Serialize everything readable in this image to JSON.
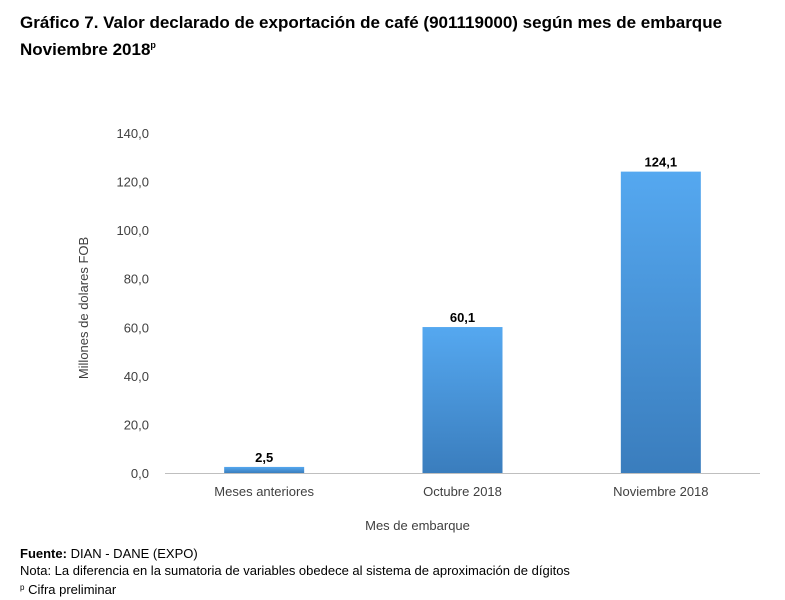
{
  "title": {
    "line1": "Gráfico 7. Valor declarado de exportación de café (901119000) según mes de embarque",
    "line2": "Noviembre 2018",
    "line2_sup": "p"
  },
  "chart_data": {
    "type": "bar",
    "categories": [
      "Meses anteriores",
      "Octubre 2018",
      "Noviembre 2018"
    ],
    "values": [
      2.5,
      60.1,
      124.1
    ],
    "value_labels": [
      "2,5",
      "60,1",
      "124,1"
    ],
    "xlabel": "Mes de embarque",
    "ylabel": "Millones de dolares FOB",
    "ylim": [
      0,
      140
    ],
    "yticks": [
      0,
      20,
      40,
      60,
      80,
      100,
      120,
      140
    ],
    "ytick_labels": [
      "0,0",
      "20,0",
      "40,0",
      "60,0",
      "80,0",
      "100,0",
      "120,0",
      "140,0"
    ],
    "grid": false,
    "bar_color_top": "#55a8f0",
    "bar_color_bottom": "#3a7dbd"
  },
  "footer": {
    "source_label": "Fuente:",
    "source_text": " DIAN - DANE (EXPO)",
    "note": "Nota: La diferencia en la sumatoria de variables obedece al sistema de aproximación de dígitos",
    "prelim_mark": "p",
    "prelim_text": " Cifra preliminar"
  }
}
